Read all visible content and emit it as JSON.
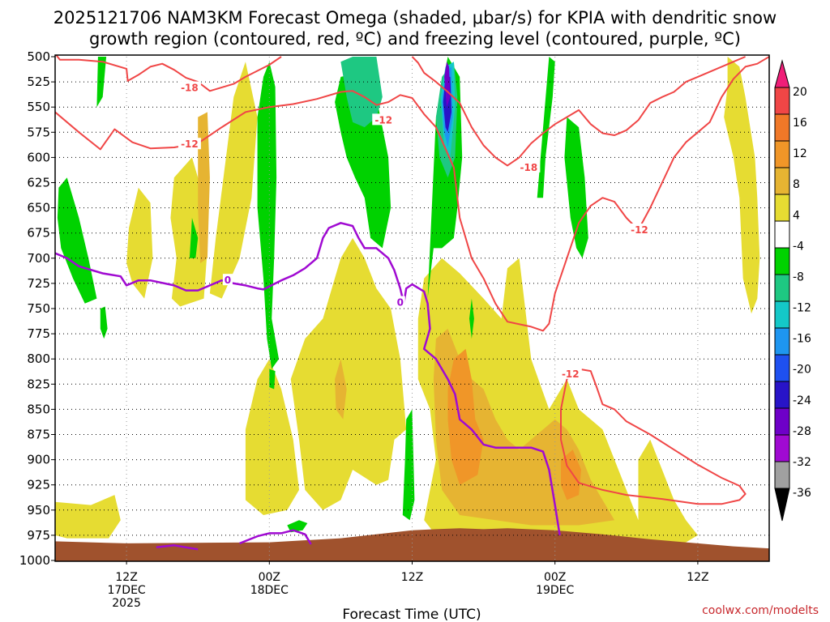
{
  "chart_data": {
    "type": "heatmap",
    "title_line1": "2025121706 NAM3KM Forecast Omega (shaded, μbar/s) for KPIA with dendritic snow",
    "title_line2": "growth region (contoured, red, ºC) and freezing level (contoured, purple, ºC)",
    "xlabel": "Forecast Time (UTC)",
    "credit": "coolwx.com/modelts",
    "y_ticks": [
      "500",
      "525",
      "550",
      "575",
      "600",
      "625",
      "650",
      "675",
      "700",
      "725",
      "750",
      "775",
      "800",
      "825",
      "850",
      "875",
      "900",
      "925",
      "950",
      "975",
      "1000"
    ],
    "y_range": [
      500,
      1000
    ],
    "x_range_hours": [
      6,
      66
    ],
    "x_ticks": [
      {
        "hour": 12,
        "line1": "12Z",
        "line2": "17DEC",
        "line3": "2025"
      },
      {
        "hour": 24,
        "line1": "00Z",
        "line2": "18DEC",
        "line3": ""
      },
      {
        "hour": 36,
        "line1": "12Z",
        "line2": "",
        "line3": ""
      },
      {
        "hour": 48,
        "line1": "00Z",
        "line2": "19DEC",
        "line3": ""
      },
      {
        "hour": 60,
        "line1": "12Z",
        "line2": "",
        "line3": ""
      }
    ],
    "colorbar": {
      "labels": [
        "20",
        "16",
        "12",
        "8",
        "4",
        "-4",
        "-8",
        "-12",
        "-16",
        "-20",
        "-24",
        "-28",
        "-32",
        "-36"
      ],
      "colors": [
        "#f01e78",
        "#f04646",
        "#f07828",
        "#f09628",
        "#e6b432",
        "#e6dc32",
        "#ffffff",
        "#00d200",
        "#1ec882",
        "#14c8c8",
        "#1e96f0",
        "#1e50f0",
        "#2814c8",
        "#6e00c8",
        "#a00ad2",
        "#a0a0a0",
        "#000000"
      ]
    },
    "shading_colors": {
      "omega_minus_4_to_minus_8": "#00d200",
      "omega_minus_8_to_minus_12": "#1ec882",
      "omega_minus_12_to_minus_16": "#14c8c8",
      "omega_minus_16_to_minus_20": "#1e96f0",
      "omega_minus_20_to_minus_24": "#1e50f0",
      "omega_minus_24_to_minus_28": "#2814c8",
      "omega_minus_28_to_minus_32": "#6e00c8",
      "omega_4_to_8": "#e6dc32",
      "omega_8_to_12": "#e6b432",
      "omega_12_to_16": "#f09628",
      "terrain": "#a0522d",
      "dgz_contour": "#f04646",
      "freezing_contour": "#a00ad2"
    },
    "contour_labels": [
      {
        "text": "-18",
        "color": "#f04646",
        "hour": 17.3,
        "p": 531
      },
      {
        "text": "-12",
        "color": "#f04646",
        "hour": 17.3,
        "p": 587
      },
      {
        "text": "-12",
        "color": "#f04646",
        "hour": 33.6,
        "p": 563
      },
      {
        "text": "-18",
        "color": "#f04646",
        "hour": 45.8,
        "p": 610
      },
      {
        "text": "-12",
        "color": "#f04646",
        "hour": 55.1,
        "p": 672
      },
      {
        "text": "-12",
        "color": "#f04646",
        "hour": 49.3,
        "p": 815
      },
      {
        "text": "0",
        "color": "#a00ad2",
        "hour": 20.5,
        "p": 722
      },
      {
        "text": "0",
        "color": "#a00ad2",
        "hour": 35.0,
        "p": 744
      }
    ],
    "dgz_minus12_upper": [
      [
        6,
        555
      ],
      [
        8,
        575
      ],
      [
        9.8,
        592
      ],
      [
        11,
        572
      ],
      [
        12.5,
        585
      ],
      [
        14,
        591
      ],
      [
        16,
        590
      ],
      [
        18,
        586
      ],
      [
        20,
        570
      ],
      [
        22,
        555
      ],
      [
        24,
        550
      ],
      [
        26,
        547
      ],
      [
        28,
        542
      ],
      [
        30,
        535
      ],
      [
        31,
        534
      ],
      [
        32,
        540
      ],
      [
        33,
        548
      ],
      [
        34,
        545
      ],
      [
        35,
        538
      ],
      [
        36,
        541
      ],
      [
        37,
        557
      ],
      [
        38,
        570
      ],
      [
        39.5,
        610
      ],
      [
        40,
        660
      ],
      [
        41,
        700
      ],
      [
        42,
        720
      ],
      [
        43,
        745
      ],
      [
        44,
        763
      ],
      [
        46,
        768
      ],
      [
        47,
        772
      ],
      [
        47.5,
        765
      ],
      [
        48,
        735
      ],
      [
        49,
        700
      ],
      [
        50,
        665
      ],
      [
        51,
        648
      ],
      [
        52,
        640
      ],
      [
        53,
        644
      ],
      [
        54,
        660
      ],
      [
        55,
        672
      ],
      [
        56,
        650
      ],
      [
        57,
        625
      ],
      [
        58,
        600
      ],
      [
        59,
        585
      ],
      [
        60,
        575
      ],
      [
        61,
        565
      ],
      [
        62,
        540
      ],
      [
        63,
        522
      ],
      [
        64,
        510
      ],
      [
        65,
        507
      ],
      [
        66,
        500
      ]
    ],
    "dgz_minus18_upper": [
      [
        6,
        497
      ],
      [
        6.4,
        503
      ],
      [
        8,
        503
      ],
      [
        10,
        505
      ],
      [
        12,
        512
      ],
      [
        12.1,
        524
      ],
      [
        13,
        518
      ],
      [
        14,
        510
      ],
      [
        15,
        507
      ],
      [
        16,
        513
      ],
      [
        17,
        521
      ],
      [
        18,
        525
      ],
      [
        19,
        534
      ],
      [
        21,
        527
      ],
      [
        22,
        520
      ],
      [
        24,
        508
      ],
      [
        25,
        500
      ]
    ],
    "dgz_minus18_mid": [
      [
        36,
        500
      ],
      [
        36.5,
        506
      ],
      [
        37,
        516
      ],
      [
        38,
        525
      ],
      [
        39,
        535
      ],
      [
        40,
        546
      ],
      [
        41,
        570
      ],
      [
        42,
        588
      ],
      [
        43,
        600
      ],
      [
        44,
        608
      ],
      [
        45,
        600
      ],
      [
        46,
        586
      ],
      [
        47,
        576
      ],
      [
        48,
        567
      ],
      [
        49,
        560
      ],
      [
        50,
        553
      ],
      [
        51,
        567
      ],
      [
        52,
        576
      ],
      [
        53,
        578
      ],
      [
        54,
        573
      ],
      [
        55,
        563
      ],
      [
        56,
        546
      ],
      [
        57,
        540
      ],
      [
        58,
        535
      ],
      [
        59,
        525
      ],
      [
        60,
        520
      ],
      [
        61,
        515
      ],
      [
        62,
        510
      ],
      [
        63,
        505
      ],
      [
        64,
        500
      ]
    ],
    "dgz_minus12_lower": [
      [
        48.5,
        850
      ],
      [
        49,
        820
      ],
      [
        50,
        810
      ],
      [
        51,
        812
      ],
      [
        51.5,
        828
      ],
      [
        52,
        845
      ],
      [
        53,
        850
      ],
      [
        54,
        862
      ],
      [
        56,
        875
      ],
      [
        58,
        890
      ],
      [
        60,
        905
      ],
      [
        62,
        918
      ],
      [
        63.5,
        926
      ],
      [
        64,
        934
      ],
      [
        63.5,
        940
      ],
      [
        62,
        944
      ],
      [
        60,
        944
      ],
      [
        57,
        939
      ],
      [
        54,
        935
      ],
      [
        52,
        930
      ],
      [
        50,
        923
      ],
      [
        49,
        906
      ],
      [
        48.5,
        880
      ],
      [
        48.5,
        850
      ]
    ],
    "freezing_0": [
      [
        6,
        695
      ],
      [
        7,
        700
      ],
      [
        8,
        708
      ],
      [
        10,
        715
      ],
      [
        11.5,
        718
      ],
      [
        12,
        727
      ],
      [
        13,
        722
      ],
      [
        14,
        722
      ],
      [
        16,
        727
      ],
      [
        17,
        732
      ],
      [
        18,
        732
      ],
      [
        19,
        727
      ],
      [
        20,
        722
      ],
      [
        21,
        725
      ],
      [
        22,
        727
      ],
      [
        23,
        730
      ],
      [
        23.5,
        731
      ],
      [
        24,
        728
      ],
      [
        25,
        722
      ],
      [
        26,
        717
      ],
      [
        27,
        710
      ],
      [
        28,
        700
      ],
      [
        28.5,
        680
      ],
      [
        29,
        670
      ],
      [
        30,
        665
      ],
      [
        31,
        668
      ],
      [
        31.5,
        680
      ],
      [
        32,
        690
      ],
      [
        33,
        690
      ],
      [
        34,
        700
      ],
      [
        34.5,
        712
      ],
      [
        35,
        730
      ],
      [
        35.3,
        745
      ],
      [
        35.5,
        730
      ],
      [
        36,
        726
      ],
      [
        37,
        733
      ],
      [
        37.3,
        745
      ],
      [
        37.5,
        770
      ],
      [
        37,
        790
      ],
      [
        38,
        800
      ],
      [
        39,
        820
      ],
      [
        39.6,
        835
      ],
      [
        40,
        860
      ],
      [
        40.5,
        865
      ],
      [
        41,
        870
      ],
      [
        42,
        885
      ],
      [
        43,
        888
      ],
      [
        44,
        888
      ],
      [
        46,
        888
      ],
      [
        47,
        892
      ],
      [
        47.5,
        910
      ],
      [
        48,
        945
      ],
      [
        48.4,
        975
      ]
    ],
    "freezing_0_low": [
      [
        14.5,
        987
      ],
      [
        16,
        985
      ],
      [
        18,
        989
      ]
    ],
    "freezing_0_low2": [
      [
        21.5,
        983
      ],
      [
        23,
        976
      ],
      [
        24,
        973
      ],
      [
        25,
        973
      ],
      [
        26,
        970
      ],
      [
        27,
        974
      ],
      [
        27.5,
        984
      ]
    ],
    "terrain_top": [
      [
        6,
        981
      ],
      [
        12,
        983
      ],
      [
        24,
        982
      ],
      [
        30,
        978
      ],
      [
        36,
        970
      ],
      [
        38,
        969
      ],
      [
        40,
        968
      ],
      [
        42,
        969
      ],
      [
        44,
        968
      ],
      [
        48,
        970
      ],
      [
        52,
        974
      ],
      [
        56,
        979
      ],
      [
        60,
        983
      ],
      [
        63,
        986
      ],
      [
        66,
        988
      ]
    ]
  }
}
